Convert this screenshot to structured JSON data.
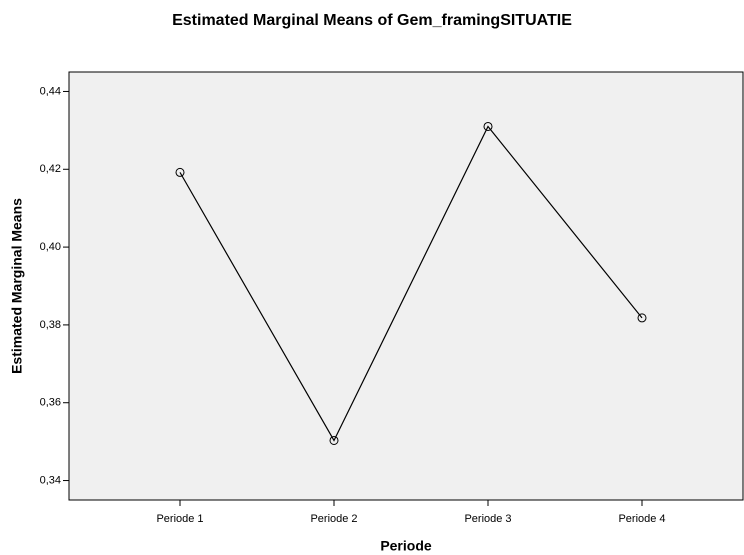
{
  "chart_data": {
    "type": "line",
    "title": "Estimated Marginal Means of Gem_framingSITUATIE",
    "x_label": "Periode",
    "y_label": "Estimated Marginal Means",
    "categories": [
      "Periode 1",
      "Periode 2",
      "Periode 3",
      "Periode 4"
    ],
    "values": [
      0.4192,
      0.3503,
      0.431,
      0.3818
    ],
    "color": "#000000",
    "ylim": [
      0.335,
      0.445
    ],
    "yticks": [
      {
        "value": 0.34,
        "label": "0,34"
      },
      {
        "value": 0.36,
        "label": "0,36"
      },
      {
        "value": 0.38,
        "label": "0,38"
      },
      {
        "value": 0.4,
        "label": "0,40"
      },
      {
        "value": 0.42,
        "label": "0,42"
      },
      {
        "value": 0.44,
        "label": "0,44"
      }
    ]
  }
}
